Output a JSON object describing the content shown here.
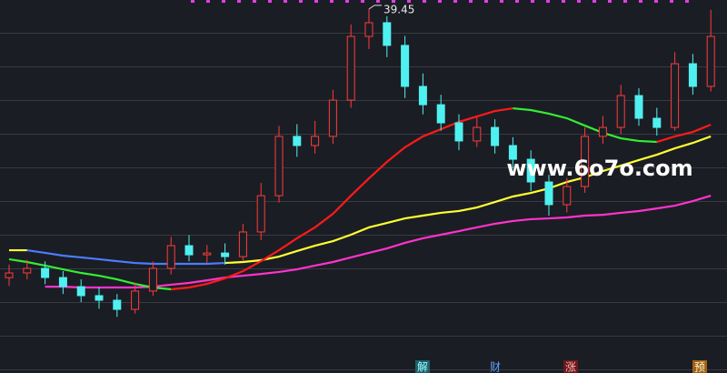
{
  "chart_data": {
    "type": "candlestick",
    "open": [
      23.0,
      23.29,
      23.57,
      23.01,
      22.45,
      21.9,
      21.62,
      21.06,
      22.18,
      23.57,
      24.96,
      24.4,
      24.51,
      24.29,
      25.8,
      28.02,
      31.65,
      31.09,
      31.65,
      33.87,
      37.77,
      38.61,
      37.22,
      34.71,
      33.59,
      32.48,
      31.37,
      32.2,
      31.09,
      30.25,
      28.86,
      27.47,
      28.58,
      31.65,
      32.2,
      34.15,
      32.76,
      32.2,
      36.1,
      34.71
    ],
    "high": [
      23.8,
      24.1,
      24.0,
      23.4,
      22.9,
      22.4,
      22.0,
      22.7,
      24.0,
      25.5,
      25.6,
      25.0,
      25.1,
      26.3,
      28.8,
      32.3,
      32.4,
      32.6,
      34.5,
      38.5,
      39.45,
      39.0,
      37.8,
      35.5,
      34.2,
      33.0,
      32.8,
      32.7,
      31.6,
      30.8,
      29.3,
      29.1,
      32.2,
      32.9,
      34.8,
      34.6,
      33.4,
      36.8,
      36.7,
      39.4
    ],
    "low": [
      22.5,
      22.9,
      22.6,
      22.0,
      21.5,
      21.1,
      20.6,
      20.8,
      21.9,
      23.2,
      24.0,
      23.9,
      23.8,
      24.0,
      25.3,
      27.6,
      30.4,
      30.6,
      31.2,
      33.4,
      37.0,
      36.5,
      34.0,
      33.0,
      32.0,
      30.8,
      31.0,
      30.6,
      29.7,
      28.3,
      26.8,
      27.0,
      28.2,
      31.2,
      31.8,
      32.3,
      31.7,
      32.0,
      34.2,
      34.4
    ],
    "close": [
      23.29,
      23.57,
      23.01,
      22.45,
      21.9,
      21.62,
      21.06,
      22.18,
      23.57,
      24.96,
      24.4,
      24.51,
      24.29,
      25.8,
      28.02,
      31.65,
      31.09,
      31.65,
      33.87,
      37.77,
      38.61,
      37.22,
      34.71,
      33.59,
      32.48,
      31.37,
      32.2,
      31.09,
      30.25,
      28.86,
      27.47,
      28.58,
      31.65,
      32.2,
      34.15,
      32.76,
      32.2,
      36.1,
      34.71,
      37.77
    ],
    "up_color": "#ff3b3b",
    "down_color": "#4ff0f0",
    "ylim": [
      18,
      40
    ],
    "series": [
      {
        "color": "#ffff33",
        "values": [
          24.68,
          24.68,
          null,
          null,
          null,
          null,
          null,
          null,
          null,
          null,
          null,
          null,
          23.9,
          23.96,
          24.07,
          24.29,
          24.63,
          24.96,
          25.24,
          25.63,
          26.08,
          26.35,
          26.63,
          26.8,
          26.97,
          27.08,
          27.3,
          27.63,
          27.97,
          28.19,
          28.47,
          28.86,
          29.14,
          29.53,
          29.86,
          30.2,
          30.53,
          30.92,
          31.25,
          31.65
        ]
      },
      {
        "color": "#4a7dff",
        "values": [
          null,
          24.68,
          24.52,
          24.35,
          24.24,
          24.13,
          24.01,
          23.9,
          23.85,
          23.85,
          23.85,
          23.85,
          23.9,
          null,
          null,
          null,
          null,
          null,
          null,
          null,
          null,
          null,
          null,
          null,
          null,
          null,
          null,
          null,
          null,
          null,
          null,
          null,
          null,
          null,
          null,
          null,
          null,
          null,
          null,
          null
        ]
      },
      {
        "color": "#ff33cc",
        "values": [
          null,
          null,
          22.45,
          22.45,
          22.4,
          22.4,
          22.4,
          22.4,
          22.45,
          22.57,
          22.68,
          22.84,
          23.01,
          23.12,
          23.23,
          23.35,
          23.51,
          23.74,
          23.96,
          24.24,
          24.52,
          24.79,
          25.13,
          25.41,
          25.63,
          25.85,
          26.08,
          26.3,
          26.47,
          26.58,
          26.63,
          26.69,
          26.8,
          26.85,
          26.97,
          27.08,
          27.24,
          27.41,
          27.69,
          28.02
        ]
      },
      {
        "color": "#33ee33",
        "values": [
          24.13,
          23.96,
          23.74,
          23.51,
          23.29,
          23.12,
          22.9,
          22.62,
          22.4,
          22.29,
          null,
          null,
          null,
          null,
          null,
          null,
          null,
          null,
          null,
          null,
          null,
          null,
          null,
          null,
          null,
          null,
          null,
          null,
          null,
          null,
          null,
          null,
          null,
          null,
          null,
          null,
          null,
          null,
          null,
          null
        ]
      },
      {
        "color": "#ff1a1a",
        "values": [
          null,
          null,
          null,
          null,
          null,
          null,
          null,
          null,
          null,
          22.29,
          22.4,
          22.62,
          22.96,
          23.4,
          24.01,
          24.68,
          25.41,
          26.08,
          26.91,
          28.02,
          29.08,
          30.09,
          30.98,
          31.65,
          32.09,
          32.54,
          32.87,
          33.2,
          33.37,
          null,
          null,
          null,
          null,
          null,
          null,
          null,
          null,
          null,
          null,
          null
        ]
      },
      {
        "color": "#33ee33",
        "values": [
          null,
          null,
          null,
          null,
          null,
          null,
          null,
          null,
          null,
          null,
          null,
          null,
          null,
          null,
          null,
          null,
          null,
          null,
          null,
          null,
          null,
          null,
          null,
          null,
          null,
          null,
          null,
          null,
          33.37,
          33.26,
          33.04,
          32.76,
          32.31,
          31.87,
          31.53,
          31.37,
          31.31,
          null,
          null,
          null
        ]
      },
      {
        "color": "#ff1a1a",
        "values": [
          null,
          null,
          null,
          null,
          null,
          null,
          null,
          null,
          null,
          null,
          null,
          null,
          null,
          null,
          null,
          null,
          null,
          null,
          null,
          null,
          null,
          null,
          null,
          null,
          null,
          null,
          null,
          null,
          null,
          null,
          null,
          null,
          null,
          null,
          null,
          null,
          31.31,
          31.65,
          31.92,
          32.37
        ]
      }
    ],
    "watermark": "www.6o7o.com",
    "markers": [
      "解",
      "财",
      "涨",
      "预"
    ]
  }
}
